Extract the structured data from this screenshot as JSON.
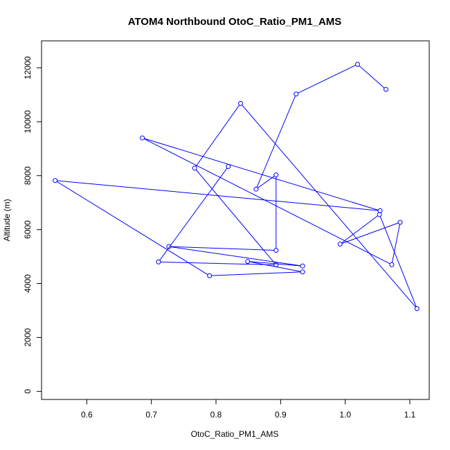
{
  "chart_data": {
    "type": "line",
    "title": "ATOM4 Northbound OtoC_Ratio_PM1_AMS",
    "xlabel": "OtoC_Ratio_PM1_AMS",
    "ylabel": "Altitude (m)",
    "xlim": [
      0.53,
      1.13
    ],
    "ylim": [
      -300,
      13000
    ],
    "x_ticks": [
      0.6,
      0.7,
      0.8,
      0.9,
      1.0,
      1.1
    ],
    "x_tick_labels": [
      "0.6",
      "0.7",
      "0.8",
      "0.9",
      "1.0",
      "1.1"
    ],
    "y_ticks": [
      0,
      2000,
      4000,
      6000,
      8000,
      10000,
      12000
    ],
    "y_tick_labels": [
      "0",
      "2000",
      "4000",
      "6000",
      "8000",
      "10000",
      "12000"
    ],
    "grid": false,
    "series": [
      {
        "color": "#0000ff",
        "markers": "open-circle",
        "x": [
          1.063,
          1.019,
          0.924,
          0.862,
          0.893,
          0.893,
          0.727,
          0.934,
          0.849,
          0.934,
          0.79,
          0.551,
          1.054,
          0.686,
          1.072,
          1.085,
          0.992,
          1.053,
          1.111,
          0.838,
          0.767,
          0.893,
          0.711,
          0.819
        ],
        "y": [
          11200,
          12130,
          11030,
          7500,
          8030,
          5230,
          5370,
          4650,
          4820,
          4430,
          4290,
          7820,
          6700,
          9400,
          4700,
          6270,
          5460,
          6560,
          3070,
          10680,
          8280,
          4690,
          4800,
          8340
        ]
      }
    ]
  }
}
